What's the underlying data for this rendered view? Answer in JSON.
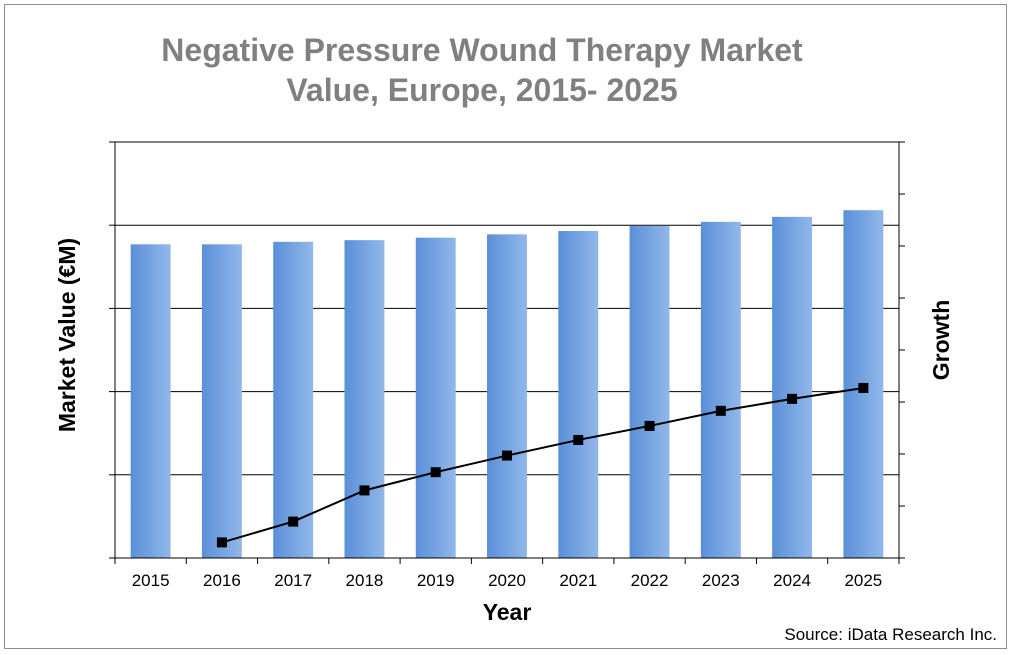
{
  "chart_data": {
    "type": "bar",
    "title": "Negative Pressure Wound Therapy Market\nValue, Europe, 2015- 2025",
    "xlabel": "Year",
    "ylabel": "Market Value (€M)",
    "y2label": "Growth",
    "categories": [
      "2015",
      "2016",
      "2017",
      "2018",
      "2019",
      "2020",
      "2021",
      "2022",
      "2023",
      "2024",
      "2025"
    ],
    "y_tick_count": 5,
    "y2_tick_count": 8,
    "grid": true,
    "series": [
      {
        "type": "bar",
        "axis": "left",
        "values": [
          3.77,
          3.77,
          3.8,
          3.82,
          3.85,
          3.89,
          3.93,
          3.99,
          4.04,
          4.1,
          4.18
        ],
        "color": "#6a9fde"
      },
      {
        "type": "line",
        "axis": "right",
        "values": [
          null,
          0.3,
          0.7,
          1.3,
          1.65,
          1.97,
          2.27,
          2.54,
          2.83,
          3.06,
          3.27
        ],
        "color": "#000000"
      }
    ],
    "ylim": [
      0,
      5
    ],
    "y2lim": [
      0,
      8
    ]
  },
  "footer": {
    "source": "Source: iData Research Inc."
  }
}
